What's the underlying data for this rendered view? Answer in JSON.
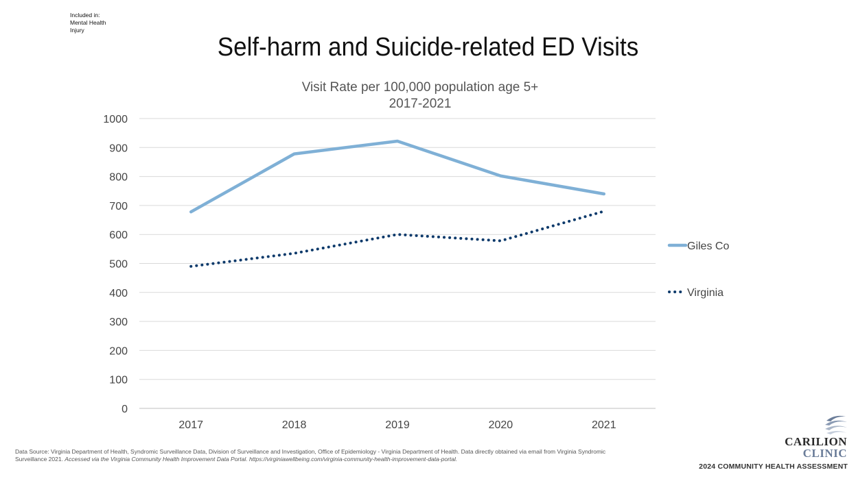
{
  "header": {
    "included_lines": [
      "Included in:",
      "Mental Health",
      "Injury"
    ],
    "title": "Self-harm and Suicide-related ED Visits"
  },
  "chart_data": {
    "type": "line",
    "title": "Visit Rate per 100,000 population age 5+",
    "subtitle": "2017-2021",
    "categories": [
      "2017",
      "2018",
      "2019",
      "2020",
      "2021"
    ],
    "ylim": [
      0,
      1000
    ],
    "yticks": [
      0,
      100,
      200,
      300,
      400,
      500,
      600,
      700,
      800,
      900,
      1000
    ],
    "grid": true,
    "legend_position": "right",
    "series": [
      {
        "name": "Giles Co",
        "values": [
          678,
          878,
          922,
          802,
          740
        ],
        "color": "#7fb0d6",
        "style": "solid"
      },
      {
        "name": "Virginia",
        "values": [
          490,
          535,
          600,
          578,
          680
        ],
        "color": "#0d3a6b",
        "style": "dotted"
      }
    ]
  },
  "footnote": {
    "source_prefix": "Data Source: Virginia Department of Health, Syndromic Surveillance Data, Division of Surveillance and Investigation, Office of Epidemiology - Virginia Department of Health. Data directly obtained via email from Virginia Syndromic Surveillance 2021. ",
    "source_italic": "Accessed via the Virginia Community Health Improvement Data Portal. https://virginiawellbeing.com/virginia-community-health-improvement-data-portal."
  },
  "branding": {
    "logo_line1": "CARILION",
    "logo_line2": "CLINIC",
    "assessment": "2024 COMMUNITY HEALTH ASSESSMENT"
  }
}
